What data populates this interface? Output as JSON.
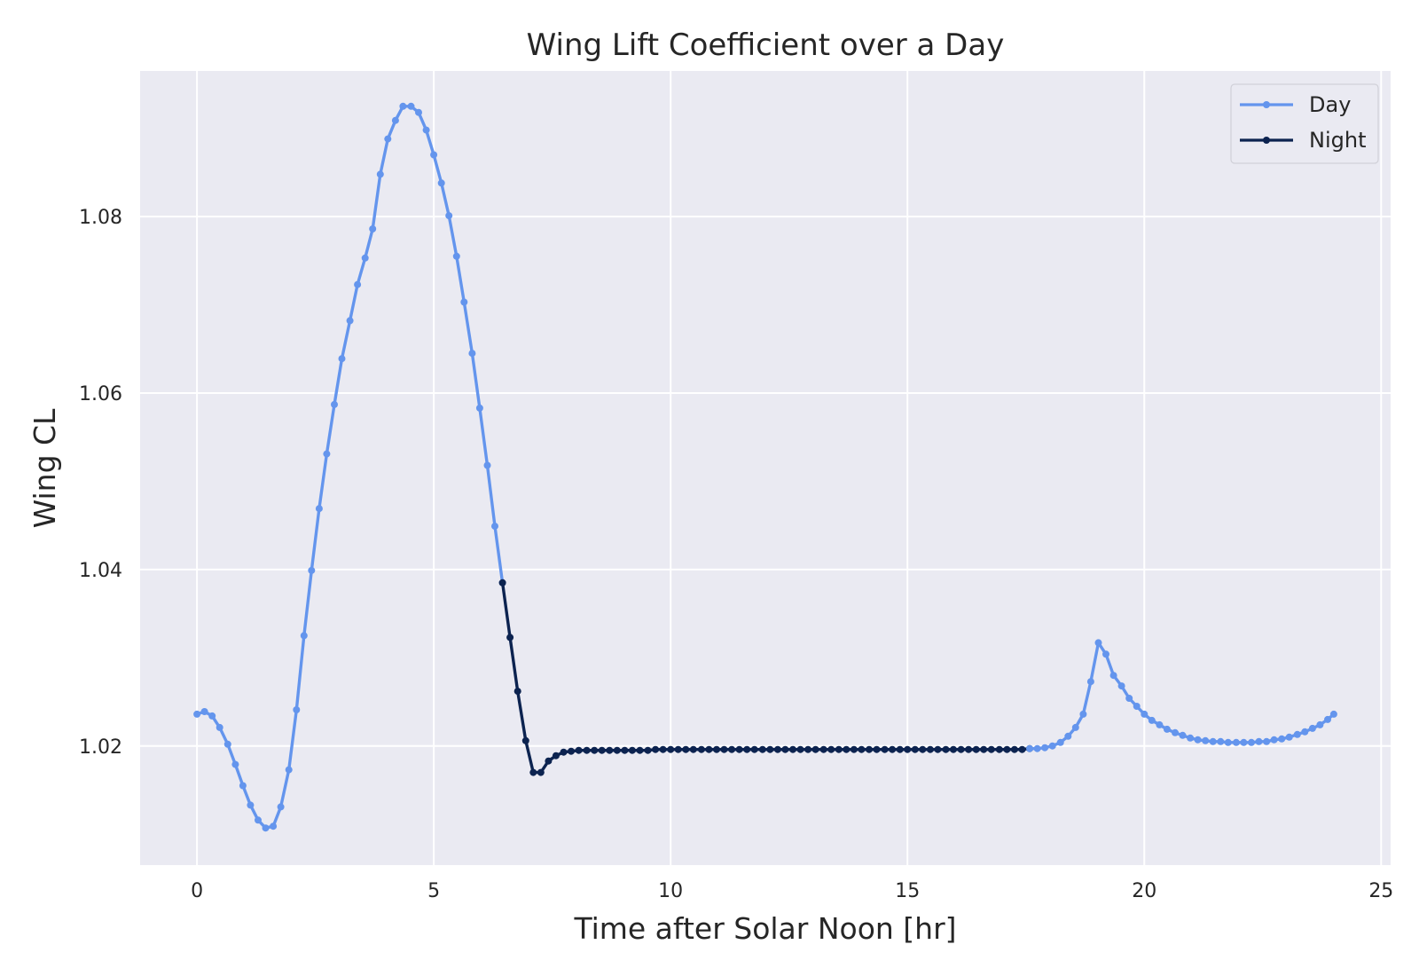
{
  "chart_data": {
    "type": "line",
    "title": "Wing Lift Coefficient over a Day",
    "xlabel": "Time after Solar Noon [hr]",
    "ylabel": "Wing CL",
    "xlim": [
      -1.2,
      25.2
    ],
    "ylim": [
      1.0065,
      1.0965
    ],
    "xticks": [
      0,
      5,
      10,
      15,
      20,
      25
    ],
    "yticks": [
      1.02,
      1.04,
      1.06,
      1.08
    ],
    "ytick_labels": [
      "1.02",
      "1.04",
      "1.06",
      "1.08"
    ],
    "grid": true,
    "legend_position": "top-right",
    "series": [
      {
        "name": "Day",
        "color": "#6495ED",
        "x": [
          0.0,
          0.16,
          0.32,
          0.48,
          0.65,
          0.81,
          0.97,
          1.13,
          1.29,
          1.45,
          1.61,
          1.77,
          1.94,
          2.1,
          2.26,
          2.42,
          2.58,
          2.74,
          2.9,
          3.06,
          3.23,
          3.39,
          3.55,
          3.71,
          3.87,
          4.03,
          4.19,
          4.35,
          4.52,
          4.68,
          4.84,
          5.0,
          5.16,
          5.32,
          5.48,
          5.64,
          5.81,
          5.97,
          6.13,
          6.29,
          6.45
        ],
        "y": [
          1.0236,
          1.0239,
          1.0234,
          1.0221,
          1.0202,
          1.0179,
          1.0155,
          1.0133,
          1.0116,
          1.0107,
          1.0109,
          1.0131,
          1.0173,
          1.0241,
          1.0325,
          1.0399,
          1.0469,
          1.0531,
          1.0587,
          1.0639,
          1.0682,
          1.0723,
          1.0753,
          1.0786,
          1.0848,
          1.0888,
          1.0909,
          1.0925,
          1.0925,
          1.0918,
          1.0898,
          1.087,
          1.0838,
          1.0801,
          1.0755,
          1.0703,
          1.0645,
          1.0583,
          1.0518,
          1.0449,
          1.0385
        ]
      },
      {
        "name": "Night",
        "color": "#0C2350",
        "x": [
          6.45,
          6.61,
          6.77,
          6.94,
          7.1,
          7.26,
          7.42,
          7.58,
          7.74,
          7.9,
          8.06,
          8.23,
          8.39,
          8.55,
          8.71,
          8.87,
          9.03,
          9.19,
          9.35,
          9.52,
          9.68,
          9.84,
          10.0,
          10.16,
          10.32,
          10.48,
          10.65,
          10.81,
          10.97,
          11.13,
          11.29,
          11.45,
          11.61,
          11.77,
          11.94,
          12.1,
          12.26,
          12.42,
          12.58,
          12.74,
          12.9,
          13.06,
          13.23,
          13.39,
          13.55,
          13.71,
          13.87,
          14.03,
          14.19,
          14.35,
          14.52,
          14.68,
          14.84,
          15.0,
          15.16,
          15.32,
          15.48,
          15.64,
          15.81,
          15.97,
          16.13,
          16.29,
          16.45,
          16.61,
          16.77,
          16.94,
          17.1,
          17.26,
          17.42,
          17.58
        ],
        "y": [
          1.0385,
          1.0323,
          1.0262,
          1.0206,
          1.017,
          1.017,
          1.0183,
          1.0189,
          1.0193,
          1.0194,
          1.0195,
          1.0195,
          1.0195,
          1.0195,
          1.0195,
          1.0195,
          1.0195,
          1.0195,
          1.0195,
          1.0195,
          1.0196,
          1.0196,
          1.0196,
          1.0196,
          1.0196,
          1.0196,
          1.0196,
          1.0196,
          1.0196,
          1.0196,
          1.0196,
          1.0196,
          1.0196,
          1.0196,
          1.0196,
          1.0196,
          1.0196,
          1.0196,
          1.0196,
          1.0196,
          1.0196,
          1.0196,
          1.0196,
          1.0196,
          1.0196,
          1.0196,
          1.0196,
          1.0196,
          1.0196,
          1.0196,
          1.0196,
          1.0196,
          1.0196,
          1.0196,
          1.0196,
          1.0196,
          1.0196,
          1.0196,
          1.0196,
          1.0196,
          1.0196,
          1.0196,
          1.0196,
          1.0196,
          1.0196,
          1.0196,
          1.0196,
          1.0196,
          1.0196,
          1.0197
        ]
      },
      {
        "name": "",
        "color": "#6495ED",
        "x": [
          17.58,
          17.74,
          17.9,
          18.06,
          18.23,
          18.39,
          18.55,
          18.71,
          18.87,
          19.03,
          19.19,
          19.35,
          19.52,
          19.68,
          19.84,
          20.0,
          20.16,
          20.32,
          20.48,
          20.65,
          20.81,
          20.97,
          21.13,
          21.29,
          21.45,
          21.61,
          21.77,
          21.94,
          22.1,
          22.26,
          22.42,
          22.58,
          22.74,
          22.9,
          23.06,
          23.23,
          23.39,
          23.55,
          23.71,
          23.87,
          24.0
        ],
        "y": [
          1.0197,
          1.0197,
          1.0198,
          1.02,
          1.0204,
          1.0211,
          1.0221,
          1.0236,
          1.0273,
          1.0317,
          1.0304,
          1.028,
          1.0268,
          1.0254,
          1.0245,
          1.0236,
          1.0229,
          1.0224,
          1.0219,
          1.0215,
          1.0212,
          1.0209,
          1.0207,
          1.0206,
          1.0205,
          1.0205,
          1.0204,
          1.0204,
          1.0204,
          1.0204,
          1.0205,
          1.0205,
          1.0207,
          1.0208,
          1.021,
          1.0213,
          1.0216,
          1.022,
          1.0224,
          1.023,
          1.0236
        ]
      }
    ]
  }
}
